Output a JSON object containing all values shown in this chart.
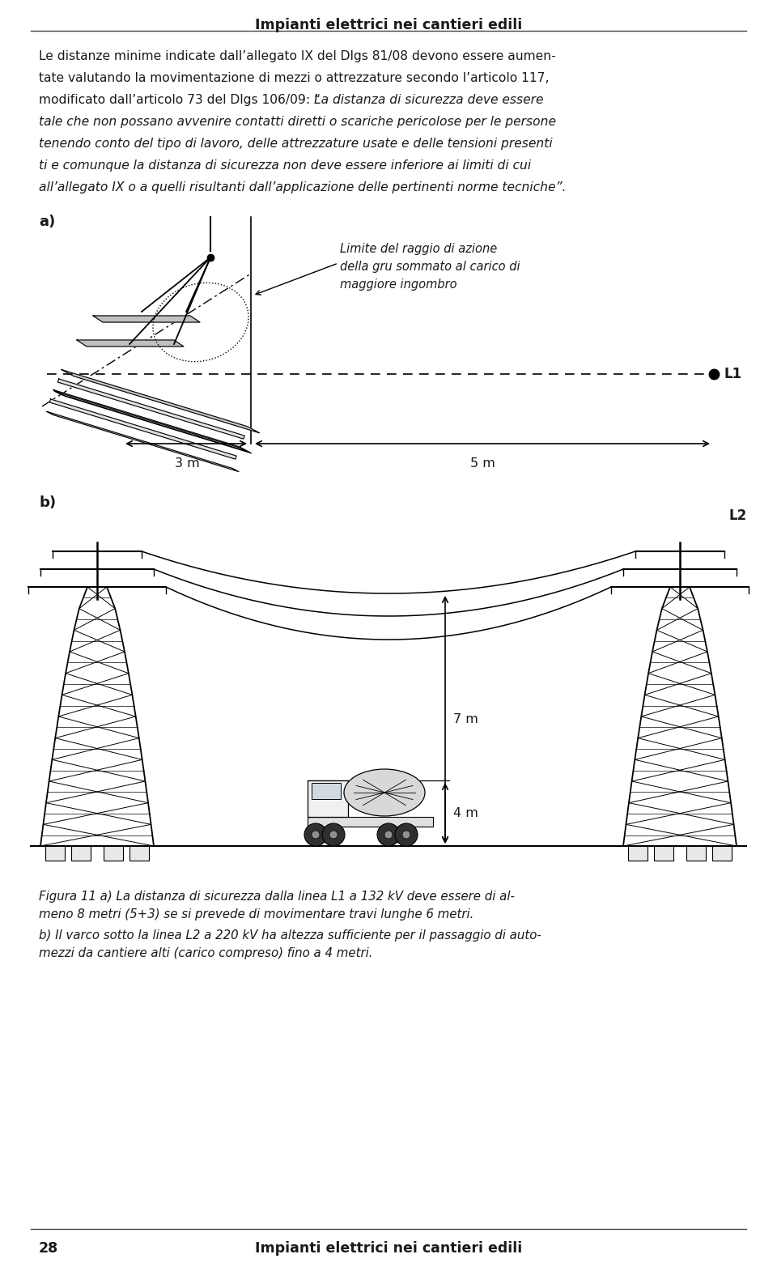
{
  "page_title": "Impianti elettrici nei cantieri edili",
  "page_number": "28",
  "label_a": "a)",
  "label_b": "b)",
  "annotation_line1": "Limite del raggio di azione",
  "annotation_line2": "della gru sommato al carico di",
  "annotation_line3": "maggiore ingombro",
  "label_L1": "L1",
  "label_L2": "L2",
  "label_3m": "3 m",
  "label_5m": "5 m",
  "label_7m": "7 m",
  "label_4m": "4 m",
  "text_line1": "Le distanze minime indicate dall’allegato IX del Dlgs 81/08 devono essere aumen-",
  "text_line2": "tate valutando la movimentazione di mezzi o attrezzature secondo l’articolo 117,",
  "text_line3_a": "modificato dall’articolo 73 del Dlgs 106/09: “",
  "text_line3_b": "La distanza di sicurezza deve essere",
  "text_line4": "tale che non possano avvenire contatti diretti o scariche pericolose per le persone",
  "text_line5": "tenendo conto del tipo di lavoro, delle attrezzature usate e delle tensioni presenti",
  "text_line6": "ti e comunque la distanza di sicurezza non deve essere inferiore ai limiti di cui",
  "text_line7": "all’allegato IX o a quelli risultanti dall’applicazione delle pertinenti norme tecniche”.",
  "cap_line1": "Figura 11 a) La distanza di sicurezza dalla linea L1 a 132 kV deve essere di al-",
  "cap_line2": "meno 8 metri (5+3) se si prevede di movimentare travi lunghe 6 metri.",
  "cap_line3": "b) Il varco sotto la linea L2 a 220 kV ha altezza sufficiente per il passaggio di auto-",
  "cap_line4": "mezzi da cantiere alti (carico compreso) fino a 4 metri.",
  "bg_color": "#ffffff",
  "text_color": "#1a1a1a"
}
